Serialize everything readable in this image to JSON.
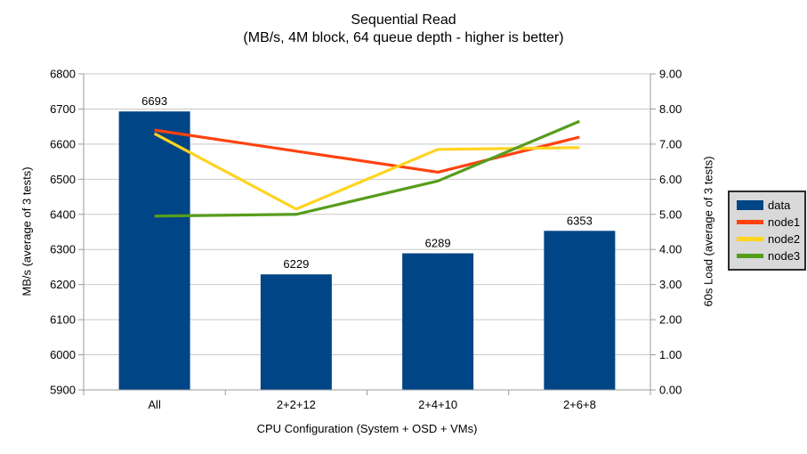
{
  "title": {
    "line1": "Sequential Read",
    "line2": "(MB/s, 4M block, 64 queue depth - higher is better)"
  },
  "chart_data": {
    "type": "combo bar + line, dual y-axes",
    "categories": [
      "All",
      "2+2+12",
      "2+4+10",
      "2+6+8"
    ],
    "bar_series": {
      "name": "data",
      "axis": "left",
      "color": "#004586",
      "values": [
        6693,
        6229,
        6289,
        6353
      ],
      "data_labels": [
        "6693",
        "6229",
        "6289",
        "6353"
      ]
    },
    "line_series": [
      {
        "name": "node1",
        "axis": "right",
        "color": "#ff420e",
        "values": [
          7.4,
          6.8,
          6.2,
          7.2
        ]
      },
      {
        "name": "node2",
        "axis": "right",
        "color": "#ffd320",
        "values": [
          7.3,
          5.15,
          6.85,
          6.9
        ]
      },
      {
        "name": "node3",
        "axis": "right",
        "color": "#579d1c",
        "values": [
          4.95,
          5.0,
          5.95,
          7.65
        ]
      }
    ],
    "left_axis": {
      "title": "MB/s (average of 3 tests)",
      "min": 5900,
      "max": 6800,
      "step": 100,
      "tick_labels": [
        "5900",
        "6000",
        "6100",
        "6200",
        "6300",
        "6400",
        "6500",
        "6600",
        "6700",
        "6800"
      ]
    },
    "right_axis": {
      "title": "60s Load (average of 3 tests)",
      "min": 0,
      "max": 9,
      "step": 1,
      "tick_labels": [
        "0.00",
        "1.00",
        "2.00",
        "3.00",
        "4.00",
        "5.00",
        "6.00",
        "7.00",
        "8.00",
        "9.00"
      ]
    },
    "x_axis": {
      "title": "CPU Configuration (System + OSD + VMs)"
    },
    "legend": {
      "position": "right",
      "background": "#d9d9d9",
      "items": [
        {
          "label": "data",
          "color": "#004586",
          "marker": "bar"
        },
        {
          "label": "node1",
          "color": "#ff420e",
          "marker": "line"
        },
        {
          "label": "node2",
          "color": "#ffd320",
          "marker": "line"
        },
        {
          "label": "node3",
          "color": "#579d1c",
          "marker": "line"
        }
      ]
    },
    "grid": "horizontal gridlines on",
    "colors": {
      "grid": "#c9c9c9",
      "axis": "#9b9b9b",
      "text": "#000000",
      "background": "#ffffff"
    }
  }
}
